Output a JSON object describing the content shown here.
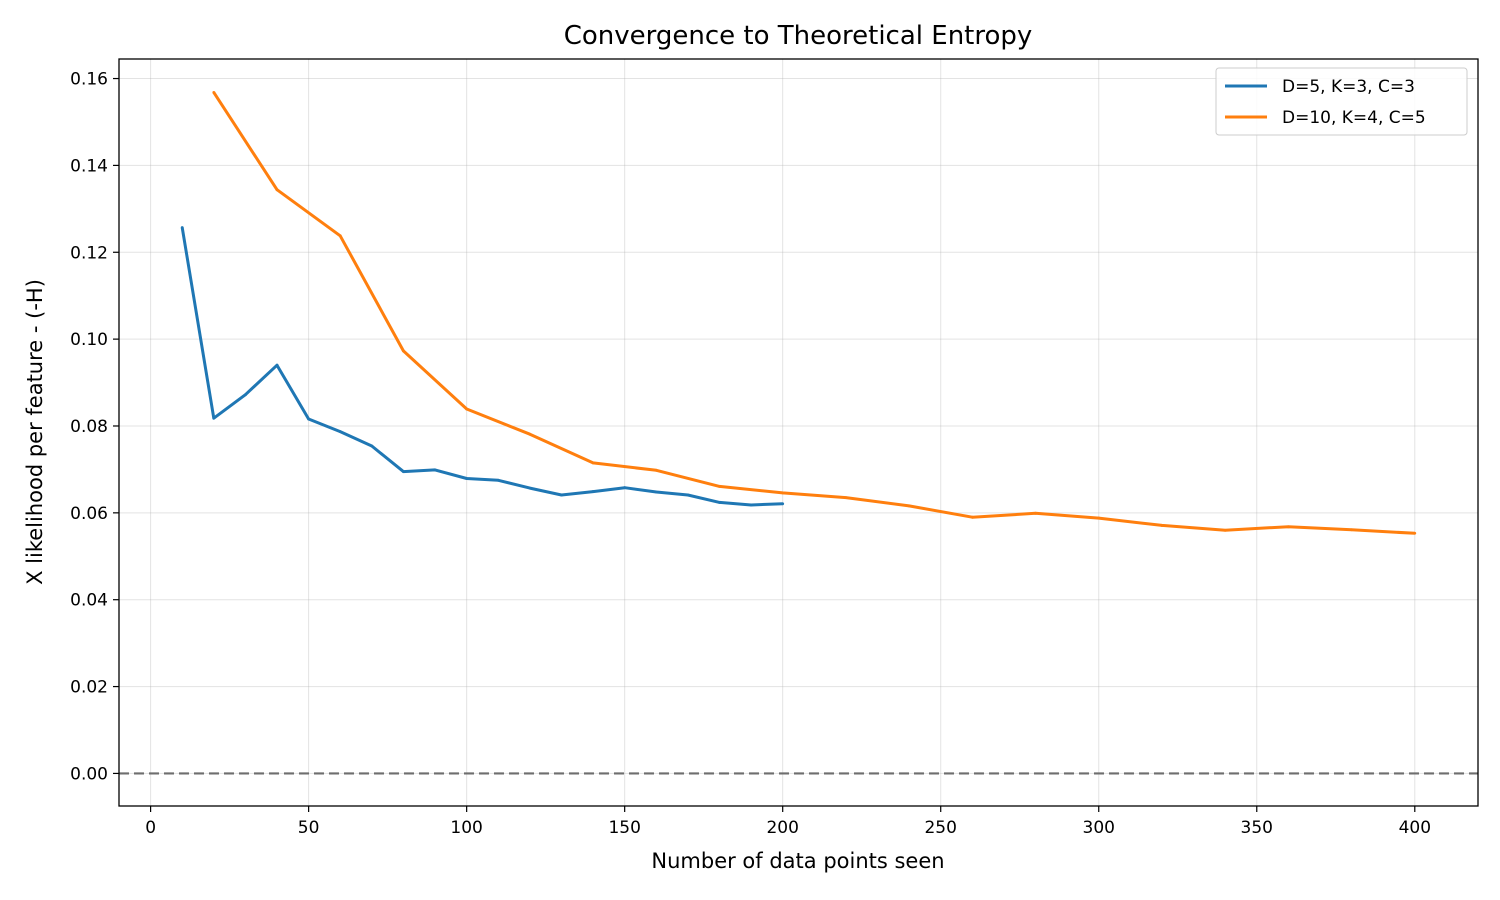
{
  "chart_data": {
    "type": "line",
    "title": "Convergence to Theoretical Entropy",
    "xlabel": "Number of data points seen",
    "ylabel": "X likelihood per feature - (-H)",
    "xlim": [
      -10,
      420
    ],
    "ylim": [
      -0.0075,
      0.1645
    ],
    "xticks": [
      0,
      50,
      100,
      150,
      200,
      250,
      300,
      350,
      400
    ],
    "xtick_labels": [
      "0",
      "50",
      "100",
      "150",
      "200",
      "250",
      "300",
      "350",
      "400"
    ],
    "yticks": [
      0.0,
      0.02,
      0.04,
      0.06,
      0.08,
      0.1,
      0.12,
      0.14,
      0.16
    ],
    "ytick_labels": [
      "0.00",
      "0.02",
      "0.04",
      "0.06",
      "0.08",
      "0.10",
      "0.12",
      "0.14",
      "0.16"
    ],
    "grid": true,
    "legend_position": "top-right",
    "reference_line": {
      "y": 0,
      "style": "dashed",
      "color": "#6e6e6e"
    },
    "series": [
      {
        "name": "D=5, K=3, C=3",
        "color": "#1f77b4",
        "x": [
          10,
          20,
          30,
          40,
          50,
          60,
          70,
          80,
          90,
          100,
          110,
          120,
          130,
          140,
          150,
          160,
          170,
          180,
          190,
          200
        ],
        "y": [
          0.1257,
          0.0818,
          0.0872,
          0.094,
          0.0816,
          0.0787,
          0.0754,
          0.0695,
          0.0699,
          0.0679,
          0.0675,
          0.0657,
          0.0641,
          0.0649,
          0.0658,
          0.0648,
          0.0641,
          0.0624,
          0.0618,
          0.0621
        ]
      },
      {
        "name": "D=10, K=4, C=5",
        "color": "#ff7f0e",
        "x": [
          20,
          40,
          60,
          80,
          100,
          120,
          140,
          160,
          180,
          200,
          220,
          240,
          260,
          280,
          300,
          320,
          340,
          360,
          380,
          400
        ],
        "y": [
          0.1568,
          0.1344,
          0.1238,
          0.0973,
          0.0839,
          0.0781,
          0.0715,
          0.0698,
          0.0661,
          0.0646,
          0.0635,
          0.0616,
          0.059,
          0.0599,
          0.0588,
          0.0571,
          0.056,
          0.0568,
          0.0561,
          0.0553
        ]
      }
    ]
  }
}
